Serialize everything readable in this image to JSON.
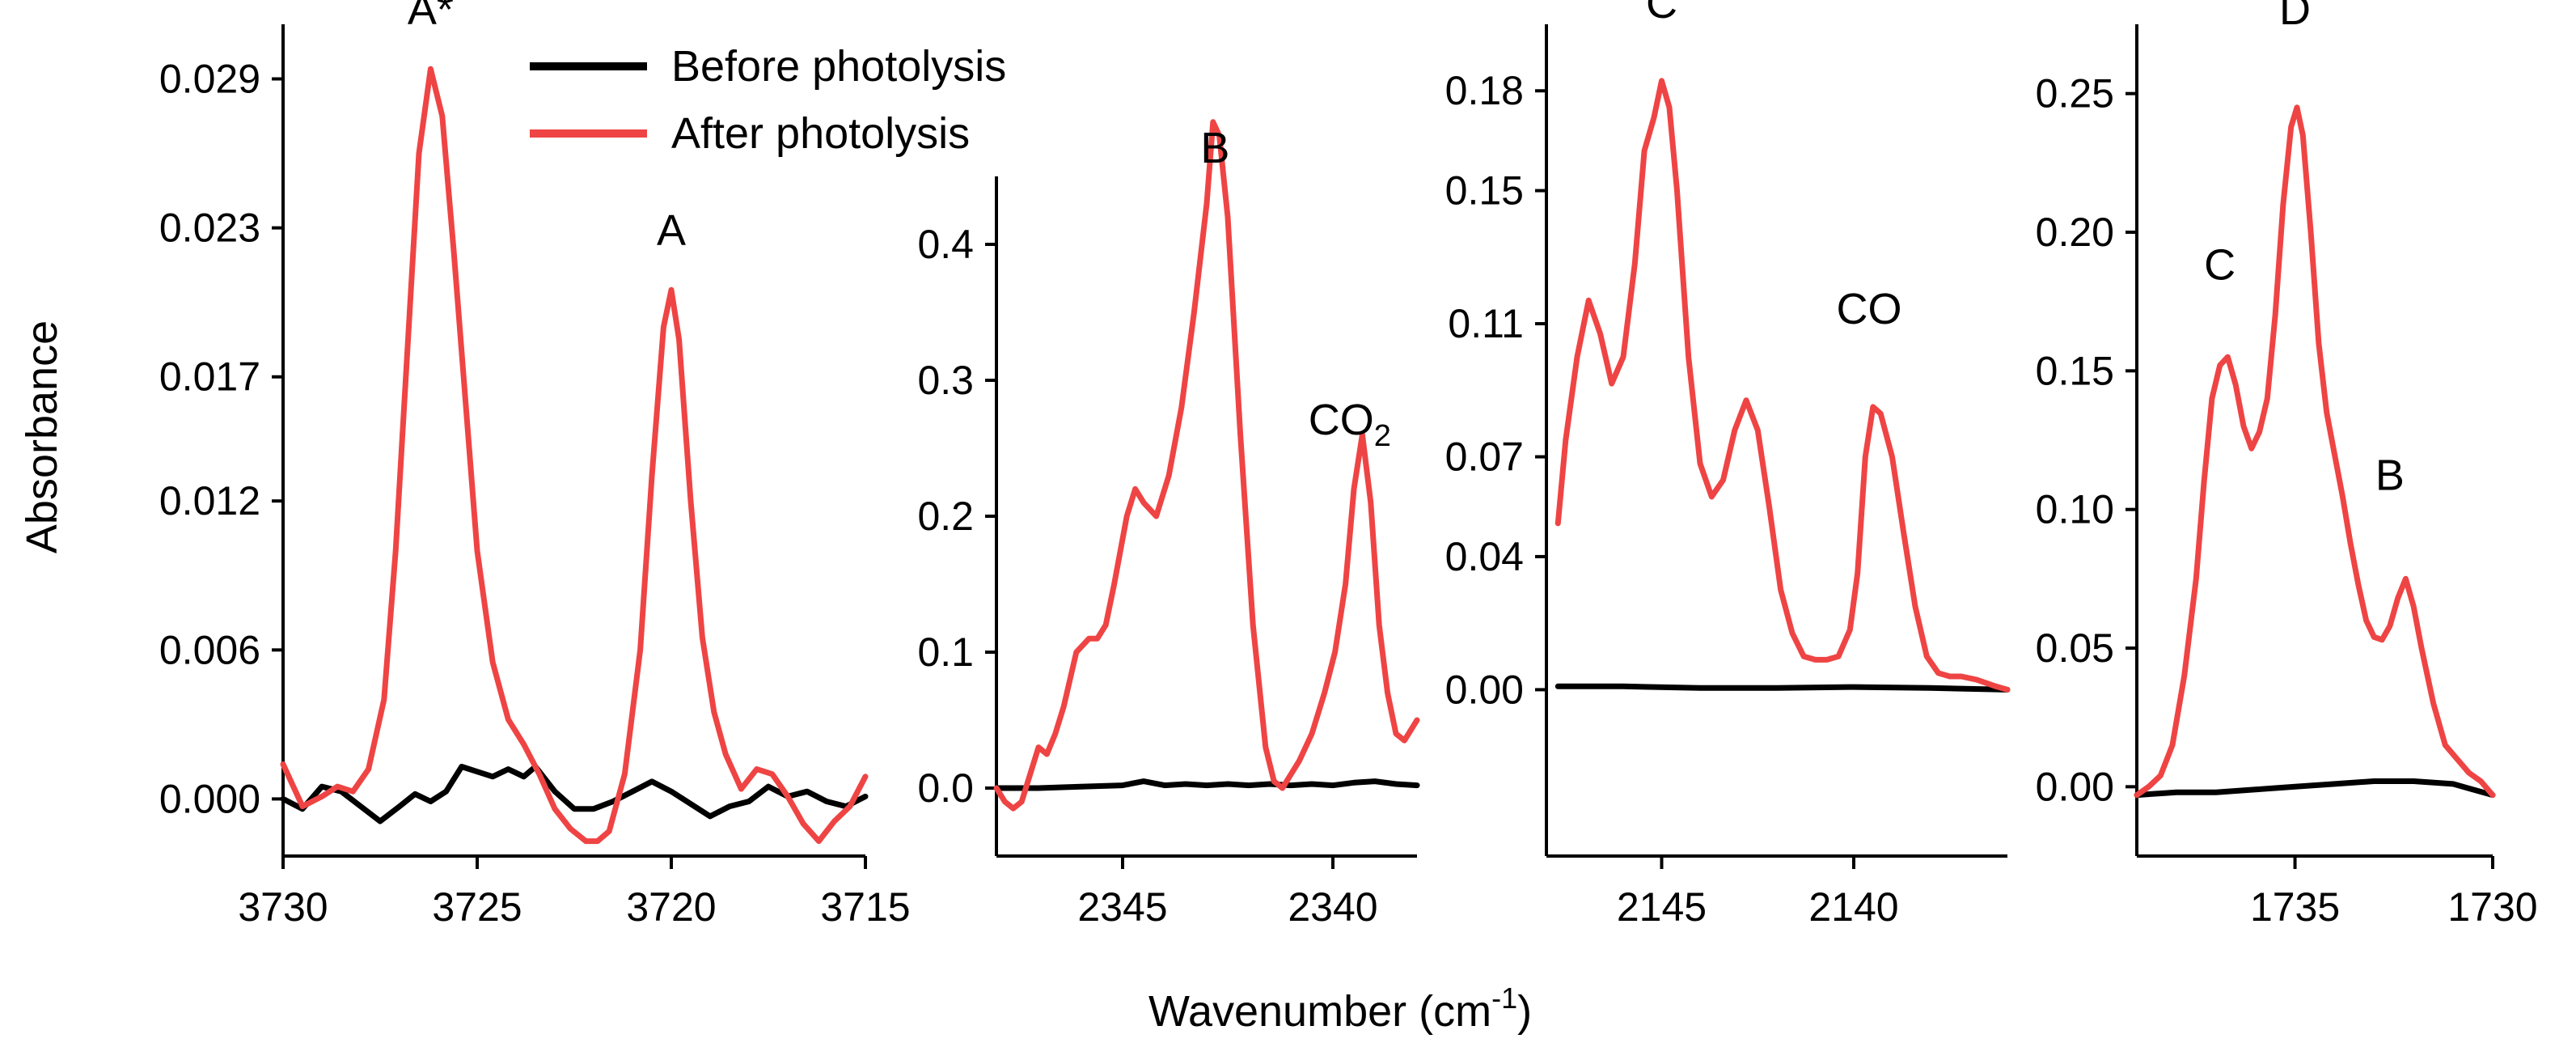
{
  "chart_data": {
    "type": "line",
    "ylabel": "Absorbance",
    "xlabel": "Wavenumber (cm",
    "xlabel_sup": "-1",
    "xlabel_close": ")",
    "colors": {
      "before": "#000000",
      "after": "#ef4444"
    },
    "legend": [
      {
        "name": "Before photolysis",
        "color": "#000000"
      },
      {
        "name": "After photolysis",
        "color": "#ef4444"
      }
    ],
    "panels": [
      {
        "xlim": [
          3730,
          3715
        ],
        "ylim": [
          -0.0023,
          0.0312
        ],
        "xticks": [
          3730,
          3725,
          3720,
          3715
        ],
        "xtick_labels": [
          "3730",
          "3725",
          "3720",
          "3715"
        ],
        "yticks": [
          0.0,
          0.006,
          0.012,
          0.017,
          0.023,
          0.029
        ],
        "ytick_labels": [
          "0.000",
          "0.006",
          "0.012",
          "0.017",
          "0.023",
          "0.029"
        ],
        "annotations": [
          {
            "text": "A*",
            "x": 3726.2,
            "y": 0.0312
          },
          {
            "text": "A",
            "x": 3720.0,
            "y": 0.0223
          }
        ],
        "series": [
          {
            "name": "Before photolysis",
            "x": [
              3730,
              3729.5,
              3729,
              3728.5,
              3728,
              3727.5,
              3727,
              3726.6,
              3726.2,
              3725.8,
              3725.4,
              3725,
              3724.6,
              3724.2,
              3723.8,
              3723.5,
              3723,
              3722.5,
              3722,
              3721.5,
              3721,
              3720.5,
              3720,
              3719.5,
              3719,
              3718.5,
              3718,
              3717.5,
              3717,
              3716.5,
              3716,
              3715.5,
              3715
            ],
            "y": [
              0,
              -0.0004,
              0.0005,
              0.0003,
              -0.0003,
              -0.0009,
              -0.0003,
              0.0002,
              -0.0001,
              0.0003,
              0.0013,
              0.0011,
              0.0009,
              0.0012,
              0.0009,
              0.0013,
              0.0003,
              -0.0004,
              -0.0004,
              -0.0001,
              0.0003,
              0.0007,
              0.0003,
              -0.0002,
              -0.0007,
              -0.0003,
              -0.0001,
              0.0005,
              0.0001,
              0.0003,
              -0.0001,
              -0.0003,
              0.0001
            ]
          },
          {
            "name": "After photolysis",
            "x": [
              3730,
              3729.5,
              3729,
              3728.6,
              3728.2,
              3727.8,
              3727.4,
              3727.1,
              3726.8,
              3726.5,
              3726.2,
              3725.9,
              3725.6,
              3725.3,
              3725,
              3724.6,
              3724.2,
              3723.8,
              3723.4,
              3723,
              3722.6,
              3722.2,
              3721.9,
              3721.6,
              3721.2,
              3720.8,
              3720.5,
              3720.2,
              3720,
              3719.8,
              3719.5,
              3719.2,
              3718.9,
              3718.6,
              3718.2,
              3717.8,
              3717.4,
              3717,
              3716.6,
              3716.2,
              3715.8,
              3715.4,
              3715
            ],
            "y": [
              0.0014,
              -0.0003,
              0.0001,
              0.0005,
              0.0003,
              0.0012,
              0.004,
              0.01,
              0.018,
              0.026,
              0.0294,
              0.0275,
              0.022,
              0.016,
              0.01,
              0.0055,
              0.0032,
              0.0022,
              0.001,
              -0.0004,
              -0.0012,
              -0.0017,
              -0.0017,
              -0.0013,
              0.001,
              0.006,
              0.013,
              0.019,
              0.0205,
              0.0185,
              0.012,
              0.0065,
              0.0035,
              0.0018,
              0.0004,
              0.0012,
              0.001,
              0.0001,
              -0.001,
              -0.0017,
              -0.0009,
              -0.0003,
              0.0009
            ]
          }
        ]
      },
      {
        "xlim": [
          2348,
          2338
        ],
        "ylim": [
          -0.05,
          0.45
        ],
        "xticks": [
          2345,
          2340
        ],
        "xtick_labels": [
          "2345",
          "2340"
        ],
        "yticks": [
          0.0,
          0.1,
          0.2,
          0.3,
          0.4
        ],
        "ytick_labels": [
          "0.0",
          "0.1",
          "0.2",
          "0.3",
          "0.4"
        ],
        "annotations": [
          {
            "text": "B",
            "x": 2342.8,
            "y": 0.46
          },
          {
            "text": "CO",
            "sub": "2",
            "x": 2339.6,
            "y": 0.26
          }
        ],
        "series": [
          {
            "name": "Before photolysis",
            "x": [
              2348,
              2347,
              2346,
              2345,
              2344.5,
              2344,
              2343.5,
              2343,
              2342.5,
              2342,
              2341.5,
              2341,
              2340.5,
              2340,
              2339.5,
              2339,
              2338.5,
              2338
            ],
            "y": [
              0.0,
              0.0,
              0.001,
              0.002,
              0.005,
              0.002,
              0.003,
              0.002,
              0.003,
              0.002,
              0.003,
              0.002,
              0.003,
              0.002,
              0.004,
              0.005,
              0.003,
              0.002
            ]
          },
          {
            "name": "After photolysis",
            "x": [
              2348,
              2347.8,
              2347.6,
              2347.4,
              2347.2,
              2347,
              2346.8,
              2346.6,
              2346.4,
              2346.1,
              2345.8,
              2345.6,
              2345.4,
              2345.2,
              2344.9,
              2344.7,
              2344.5,
              2344.2,
              2343.9,
              2343.6,
              2343.3,
              2343.0,
              2342.85,
              2342.7,
              2342.5,
              2342.2,
              2341.9,
              2341.6,
              2341.4,
              2341.2,
              2341.0,
              2340.8,
              2340.5,
              2340.2,
              2339.95,
              2339.7,
              2339.5,
              2339.3,
              2339.1,
              2338.9,
              2338.7,
              2338.5,
              2338.3,
              2338
            ],
            "y": [
              0.0,
              -0.01,
              -0.015,
              -0.01,
              0.01,
              0.03,
              0.025,
              0.04,
              0.06,
              0.1,
              0.11,
              0.11,
              0.12,
              0.15,
              0.2,
              0.22,
              0.21,
              0.2,
              0.23,
              0.28,
              0.35,
              0.43,
              0.49,
              0.48,
              0.42,
              0.26,
              0.12,
              0.03,
              0.005,
              0.0,
              0.01,
              0.02,
              0.04,
              0.07,
              0.1,
              0.15,
              0.22,
              0.26,
              0.21,
              0.12,
              0.07,
              0.04,
              0.035,
              0.05
            ]
          }
        ]
      },
      {
        "xlim": [
          2148,
          2136
        ],
        "ylim": [
          -0.05,
          0.2
        ],
        "xticks": [
          2145,
          2140
        ],
        "xtick_labels": [
          "2145",
          "2140"
        ],
        "yticks": [
          0.0,
          0.04,
          0.07,
          0.11,
          0.15,
          0.18
        ],
        "ytick_labels": [
          "0.00",
          "0.04",
          "0.07",
          "0.11",
          "0.15",
          "0.18"
        ],
        "annotations": [
          {
            "text": "C",
            "x": 2145.0,
            "y": 0.202
          },
          {
            "text": "CO",
            "x": 2139.6,
            "y": 0.11
          }
        ],
        "series": [
          {
            "name": "Before photolysis",
            "x": [
              2147.7,
              2146,
              2144,
              2142,
              2140,
              2138,
              2136
            ],
            "y": [
              0.001,
              0.001,
              0.0005,
              0.0005,
              0.0008,
              0.0005,
              0.0
            ]
          },
          {
            "name": "After photolysis",
            "x": [
              2147.7,
              2147.5,
              2147.2,
              2146.9,
              2146.6,
              2146.3,
              2146.0,
              2145.7,
              2145.45,
              2145.2,
              2145.0,
              2144.8,
              2144.6,
              2144.3,
              2144.0,
              2143.7,
              2143.4,
              2143.1,
              2142.8,
              2142.5,
              2142.2,
              2141.9,
              2141.6,
              2141.3,
              2141.0,
              2140.7,
              2140.4,
              2140.1,
              2139.9,
              2139.7,
              2139.5,
              2139.3,
              2139.0,
              2138.7,
              2138.4,
              2138.1,
              2137.8,
              2137.5,
              2137.2,
              2136.8,
              2136.3,
              2136
            ],
            "y": [
              0.05,
              0.075,
              0.1,
              0.117,
              0.107,
              0.092,
              0.1,
              0.128,
              0.162,
              0.172,
              0.183,
              0.175,
              0.15,
              0.1,
              0.068,
              0.058,
              0.063,
              0.078,
              0.087,
              0.078,
              0.055,
              0.03,
              0.017,
              0.01,
              0.009,
              0.009,
              0.01,
              0.018,
              0.035,
              0.07,
              0.085,
              0.083,
              0.07,
              0.047,
              0.025,
              0.01,
              0.005,
              0.004,
              0.004,
              0.003,
              0.001,
              0.0
            ]
          }
        ]
      },
      {
        "xlim": [
          1739,
          1730
        ],
        "ylim": [
          -0.025,
          0.275
        ],
        "xticks": [
          1735,
          1730
        ],
        "xtick_labels": [
          "1735",
          "1730"
        ],
        "yticks": [
          0.0,
          0.05,
          0.1,
          0.15,
          0.2,
          0.25
        ],
        "ytick_labels": [
          "0.00",
          "0.05",
          "0.10",
          "0.15",
          "0.20",
          "0.25"
        ],
        "annotations": [
          {
            "text": "C",
            "x": 1736.9,
            "y": 0.183
          },
          {
            "text": "D",
            "x": 1735.0,
            "y": 0.275
          },
          {
            "text": "B",
            "x": 1732.6,
            "y": 0.107
          }
        ],
        "series": [
          {
            "name": "Before photolysis",
            "x": [
              1739,
              1738,
              1737,
              1736,
              1735,
              1734,
              1733,
              1732,
              1731,
              1730
            ],
            "y": [
              -0.003,
              -0.002,
              -0.002,
              -0.001,
              0.0,
              0.001,
              0.002,
              0.002,
              0.001,
              -0.003
            ]
          },
          {
            "name": "After photolysis",
            "x": [
              1739,
              1738.7,
              1738.4,
              1738.1,
              1737.8,
              1737.5,
              1737.3,
              1737.1,
              1736.9,
              1736.7,
              1736.5,
              1736.3,
              1736.1,
              1735.9,
              1735.7,
              1735.5,
              1735.3,
              1735.1,
              1734.95,
              1734.8,
              1734.6,
              1734.4,
              1734.2,
              1734.0,
              1733.8,
              1733.6,
              1733.4,
              1733.2,
              1733.0,
              1732.8,
              1732.6,
              1732.4,
              1732.2,
              1732.0,
              1731.8,
              1731.5,
              1731.2,
              1730.9,
              1730.6,
              1730.3,
              1730
            ],
            "y": [
              -0.003,
              0.0,
              0.004,
              0.015,
              0.04,
              0.075,
              0.11,
              0.14,
              0.152,
              0.155,
              0.145,
              0.13,
              0.122,
              0.128,
              0.14,
              0.17,
              0.21,
              0.238,
              0.245,
              0.235,
              0.2,
              0.16,
              0.135,
              0.12,
              0.105,
              0.088,
              0.073,
              0.06,
              0.054,
              0.053,
              0.058,
              0.068,
              0.075,
              0.065,
              0.05,
              0.03,
              0.015,
              0.01,
              0.005,
              0.002,
              -0.003
            ]
          }
        ]
      }
    ]
  }
}
